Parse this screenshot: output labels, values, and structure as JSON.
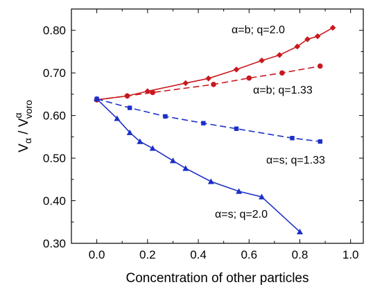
{
  "chart_data": {
    "type": "line",
    "xlabel": "Concentration of other particles",
    "ylabel": {
      "main": "V",
      "sub1": "α",
      "sep": " / V",
      "sup": "α",
      "sub2": "voro"
    },
    "xlim": [
      -0.1,
      1.05
    ],
    "ylim": [
      0.3,
      0.85
    ],
    "xticks": [
      0.0,
      0.2,
      0.4,
      0.6,
      0.8,
      1.0
    ],
    "xtick_labels": [
      "0.0",
      "0.2",
      "0.4",
      "0.6",
      "0.8",
      "1.0"
    ],
    "yticks": [
      0.3,
      0.4,
      0.5,
      0.6,
      0.7,
      0.8
    ],
    "ytick_labels": [
      "0.30",
      "0.40",
      "0.50",
      "0.60",
      "0.70",
      "0.80"
    ],
    "series": [
      {
        "name": "α=b; q=2.0",
        "color": "#c8191e",
        "dash": "solid",
        "marker": "diamond",
        "x": [
          0.0,
          0.12,
          0.2,
          0.35,
          0.44,
          0.55,
          0.65,
          0.72,
          0.79,
          0.83,
          0.87,
          0.93
        ],
        "y": [
          0.637,
          0.646,
          0.657,
          0.676,
          0.687,
          0.708,
          0.729,
          0.742,
          0.762,
          0.779,
          0.786,
          0.806
        ]
      },
      {
        "name": "α=b; q=1.33",
        "color": "#c8191e",
        "dash": "dashed",
        "marker": "circle",
        "x": [
          0.0,
          0.12,
          0.22,
          0.46,
          0.6,
          0.73,
          0.88
        ],
        "y": [
          0.637,
          0.646,
          0.654,
          0.673,
          0.688,
          0.7,
          0.716
        ]
      },
      {
        "name": "α=s; q=1.33",
        "color": "#1c2fc6",
        "dash": "dashed",
        "marker": "square",
        "x": [
          0.0,
          0.13,
          0.27,
          0.42,
          0.55,
          0.77,
          0.88
        ],
        "y": [
          0.639,
          0.618,
          0.598,
          0.582,
          0.569,
          0.547,
          0.539
        ]
      },
      {
        "name": "α=s; q=2.0",
        "color": "#1c2fc6",
        "dash": "solid",
        "marker": "triangle",
        "x": [
          0.0,
          0.08,
          0.13,
          0.17,
          0.22,
          0.3,
          0.35,
          0.45,
          0.56,
          0.65,
          0.8
        ],
        "y": [
          0.639,
          0.593,
          0.56,
          0.539,
          0.523,
          0.494,
          0.476,
          0.445,
          0.422,
          0.409,
          0.327
        ]
      }
    ],
    "annotations": [
      {
        "text": "α=b; q=2.0"
      },
      {
        "text": "α=b; q=1.33"
      },
      {
        "text": "α=s; q=1.33"
      },
      {
        "text": "α=s; q=2.0"
      }
    ]
  }
}
